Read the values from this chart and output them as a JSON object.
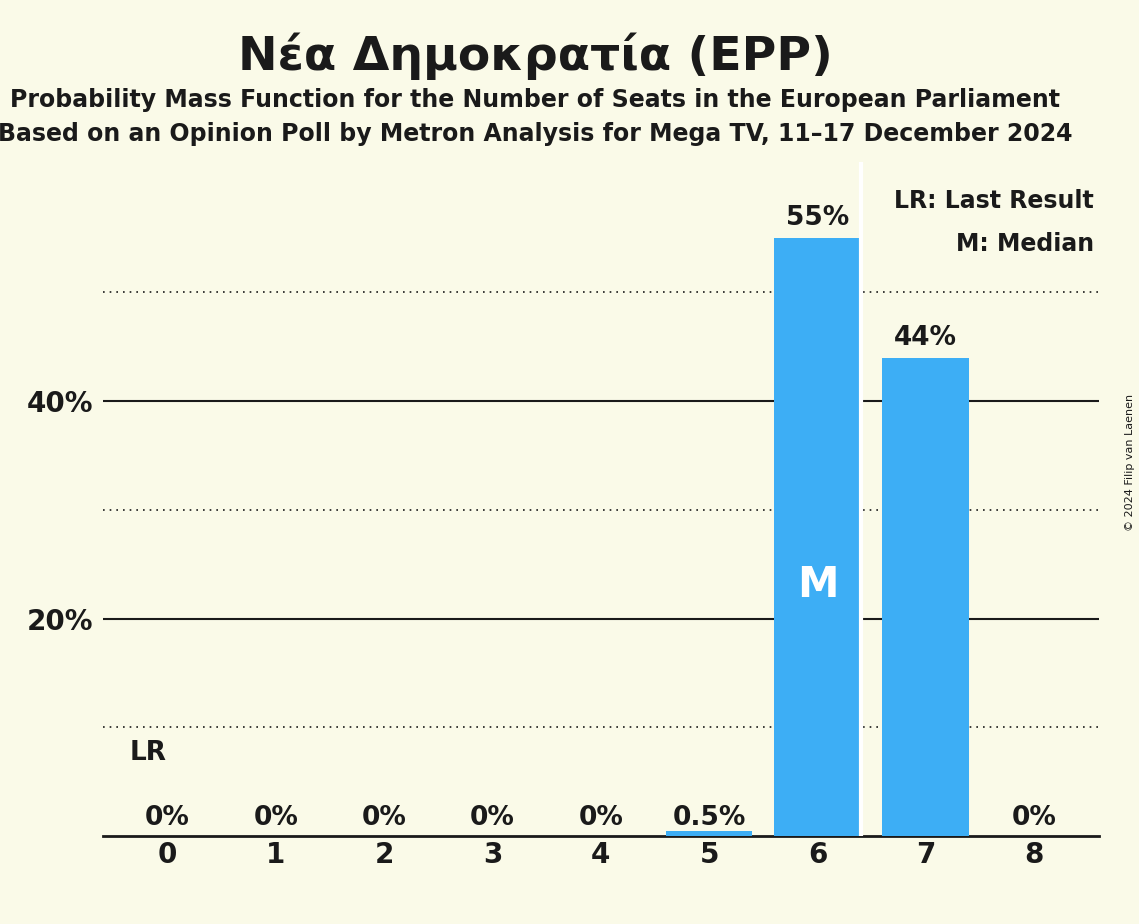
{
  "title": "Nέα Δημοκρατία (EPP)",
  "subtitle1": "Probability Mass Function for the Number of Seats in the European Parliament",
  "subtitle2": "Based on an Opinion Poll by Metron Analysis for Mega TV, 11–17 December 2024",
  "categories": [
    0,
    1,
    2,
    3,
    4,
    5,
    6,
    7,
    8
  ],
  "values": [
    0.0,
    0.0,
    0.0,
    0.0,
    0.0,
    0.005,
    0.55,
    0.44,
    0.0
  ],
  "bar_color": "#3daef5",
  "background_color": "#fafae8",
  "text_color": "#1a1a1a",
  "bar_labels": [
    "0%",
    "0%",
    "0%",
    "0%",
    "0%",
    "0.5%",
    "55%",
    "44%",
    "0%"
  ],
  "median_bar": 6,
  "lr_label": "LR",
  "median_label": "M",
  "legend_lr": "LR: Last Result",
  "legend_m": "M: Median",
  "ytick_vals": [
    0.2,
    0.4
  ],
  "ytick_labels": [
    "20%",
    "40%"
  ],
  "solid_gridlines": [
    0.2,
    0.4
  ],
  "dotted_gridlines": [
    0.1,
    0.3,
    0.5
  ],
  "ylim": [
    0,
    0.62
  ],
  "copyright": "© 2024 Filip van Laenen",
  "title_fontsize": 34,
  "subtitle_fontsize": 17,
  "bar_label_fontsize": 19,
  "tick_fontsize": 20,
  "ytick_fontsize": 20,
  "legend_fontsize": 17,
  "median_label_fontsize": 30,
  "lr_label_fontsize": 19
}
